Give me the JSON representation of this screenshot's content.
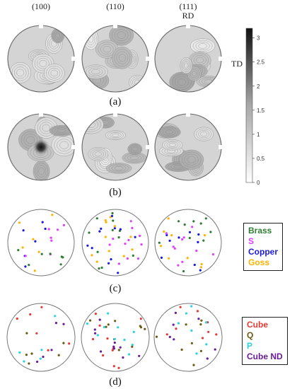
{
  "headers": [
    "(100)",
    "(110)",
    "(111)"
  ],
  "rd_label": "RD",
  "td_label": "TD",
  "panel_labels": [
    "(a)",
    "(b)",
    "(c)",
    "(d)"
  ],
  "colorbar": {
    "ticks": [
      "3",
      "2.5",
      "2",
      "1.5",
      "1",
      "0.5",
      "0"
    ],
    "tick_values": [
      3,
      2.5,
      2,
      1.5,
      1,
      0.5,
      0
    ],
    "max": 3.2
  },
  "legend_c": [
    {
      "label": "Brass",
      "color": "#2e7d32"
    },
    {
      "label": "S",
      "color": "#e040fb"
    },
    {
      "label": "Copper",
      "color": "#1a1ad8"
    },
    {
      "label": "Goss",
      "color": "#ffb300"
    }
  ],
  "legend_d": [
    {
      "label": "Cube",
      "color": "#e53935"
    },
    {
      "label": "Q",
      "color": "#6b5a12"
    },
    {
      "label": "P",
      "color": "#29d3e0"
    },
    {
      "label": "Cube ND",
      "color": "#6a1b9a"
    }
  ]
}
